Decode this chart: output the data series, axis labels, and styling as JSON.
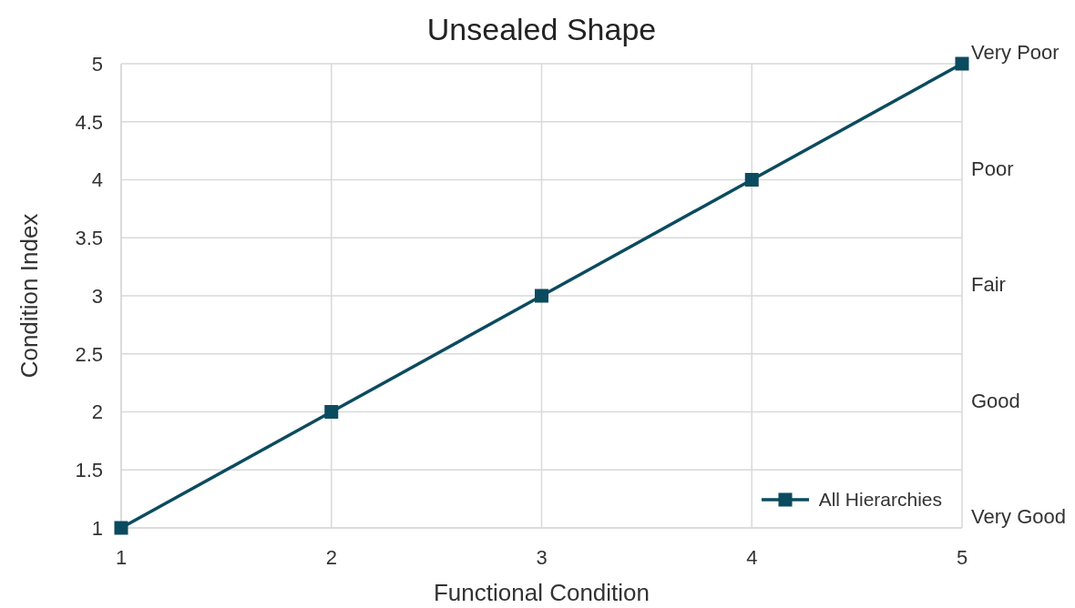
{
  "chart_data": {
    "type": "line",
    "title": "Unsealed Shape",
    "xlabel": "Functional Condition",
    "ylabel": "Condition Index",
    "x": [
      1,
      2,
      3,
      4,
      5
    ],
    "series": [
      {
        "name": "All Hierarchies",
        "color": "#0b4b5f",
        "values": [
          1,
          2,
          3,
          4,
          5
        ]
      }
    ],
    "xlim": [
      1,
      5
    ],
    "xticks": [
      1,
      2,
      3,
      4,
      5
    ],
    "ylim": [
      1,
      5
    ],
    "yticks": [
      1,
      1.5,
      2,
      2.5,
      3,
      3.5,
      4,
      4.5,
      5
    ],
    "annotations": [
      "Very Poor",
      "Poor",
      "Fair",
      "Good",
      "Very Good"
    ],
    "grid": true,
    "legend": "bottom right",
    "marker": "square",
    "line_style": "solid"
  }
}
